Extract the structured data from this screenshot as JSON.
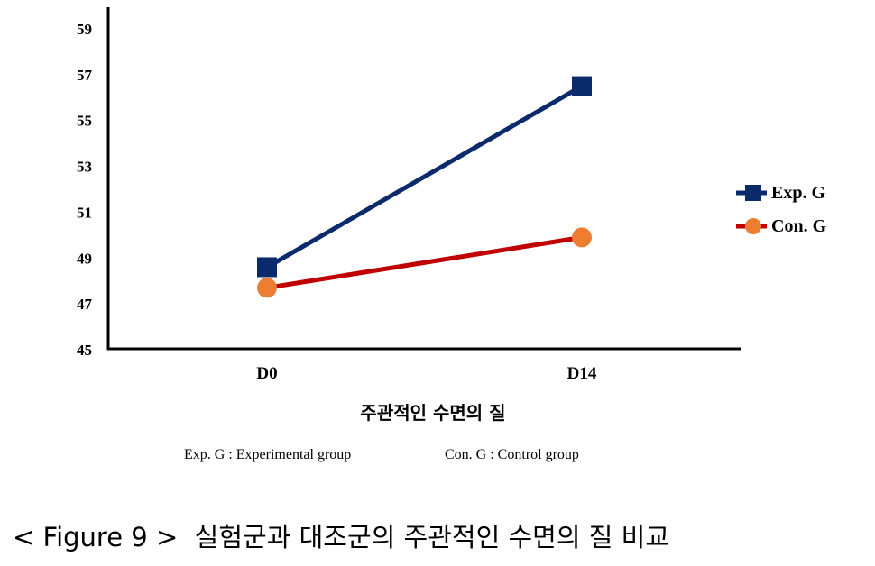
{
  "chart_data": {
    "type": "line",
    "categories": [
      "D0",
      "D14"
    ],
    "series": [
      {
        "name": "Exp. G",
        "values": [
          48.6,
          56.5
        ],
        "color": "#0a2a6b",
        "marker": "square"
      },
      {
        "name": "Con. G",
        "values": [
          47.7,
          49.9
        ],
        "color": "#c00000",
        "marker": "circle",
        "marker_color": "#ed7d31"
      }
    ],
    "xlabel": "주관적인 수면의 질",
    "ylabel": "",
    "ylim": [
      45,
      59
    ],
    "yticks": [
      45,
      47,
      49,
      51,
      53,
      55,
      57,
      59
    ],
    "grid": false,
    "legend_position": "right"
  },
  "footnote": {
    "exp": "Exp. G : Experimental  group",
    "con": "Con. G : Control group"
  },
  "caption": "< Figure 9 >  실험군과 대조군의 주관적인 수면의 질 비교"
}
